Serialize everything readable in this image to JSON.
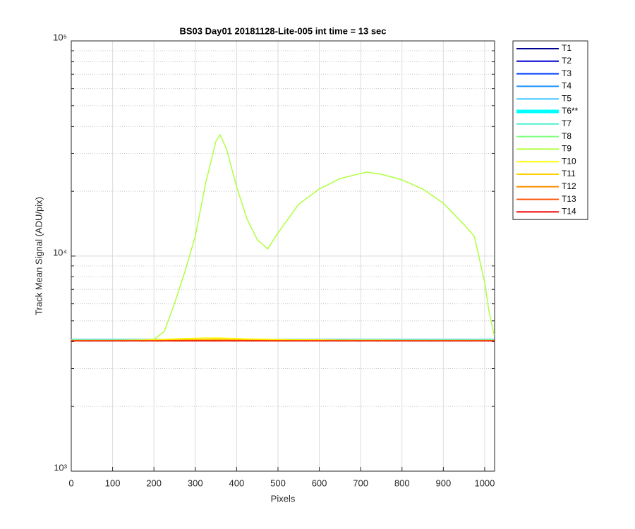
{
  "chart_data": {
    "type": "line",
    "title": "BS03 Day01 20181128-Lite-005 int time = 13 sec",
    "x_label": "Pixels",
    "y_label": "Track Mean Signal (ADU/pix)",
    "log_y": true,
    "grid": true,
    "minor_grid": true,
    "legend": "outside-right",
    "xlim": [
      0,
      1024
    ],
    "xticks": [
      0,
      100,
      200,
      300,
      400,
      500,
      600,
      700,
      800,
      900,
      1000
    ],
    "ylim": [
      1000,
      100000
    ],
    "yticks": [
      {
        "value": 1000,
        "label": "10³"
      },
      {
        "value": 10000,
        "label": "10⁴"
      },
      {
        "value": 100000,
        "label": "10⁵"
      }
    ],
    "x": [
      0,
      50,
      100,
      150,
      200,
      225,
      250,
      275,
      300,
      325,
      350,
      360,
      375,
      400,
      425,
      450,
      475,
      500,
      550,
      600,
      650,
      700,
      715,
      750,
      800,
      850,
      900,
      950,
      975,
      1000,
      1010,
      1023
    ],
    "series": [
      {
        "name": "T1",
        "color": "#00008f",
        "values": [
          4040,
          4040,
          4040,
          4040,
          4040,
          4040,
          4040,
          4040,
          4040,
          4040,
          4040,
          4040,
          4040,
          4040,
          4040,
          4040,
          4040,
          4040,
          4040,
          4040,
          4040,
          4040,
          4040,
          4040,
          4040,
          4040,
          4040,
          4040,
          4040,
          4040,
          4040,
          4040
        ]
      },
      {
        "name": "T2",
        "color": "#0000cf",
        "values": [
          4045,
          4045,
          4045,
          4045,
          4045,
          4045,
          4045,
          4045,
          4045,
          4045,
          4045,
          4045,
          4045,
          4045,
          4045,
          4045,
          4045,
          4045,
          4045,
          4045,
          4045,
          4045,
          4045,
          4045,
          4045,
          4045,
          4045,
          4045,
          4045,
          4045,
          4045,
          4045
        ]
      },
      {
        "name": "T3",
        "color": "#0040ff",
        "values": [
          4050,
          4050,
          4050,
          4050,
          4050,
          4050,
          4050,
          4050,
          4050,
          4050,
          4050,
          4050,
          4050,
          4050,
          4050,
          4050,
          4050,
          4050,
          4050,
          4050,
          4050,
          4050,
          4050,
          4050,
          4050,
          4050,
          4050,
          4050,
          4050,
          4050,
          4050,
          4050
        ]
      },
      {
        "name": "T4",
        "color": "#1e90ff",
        "values": [
          4060,
          4060,
          4060,
          4060,
          4060,
          4060,
          4060,
          4060,
          4060,
          4060,
          4060,
          4060,
          4060,
          4060,
          4060,
          4060,
          4060,
          4060,
          4060,
          4060,
          4060,
          4060,
          4060,
          4060,
          4060,
          4060,
          4060,
          4060,
          4060,
          4060,
          4060,
          4060
        ]
      },
      {
        "name": "T5",
        "color": "#40c8ff",
        "values": [
          4100,
          4100,
          4100,
          4100,
          4100,
          4100,
          4100,
          4100,
          4100,
          4100,
          4100,
          4100,
          4100,
          4100,
          4100,
          4100,
          4100,
          4100,
          4100,
          4100,
          4100,
          4100,
          4100,
          4100,
          4100,
          4100,
          4100,
          4100,
          4100,
          4100,
          4100,
          4100
        ]
      },
      {
        "name": "T6**",
        "color": "#00ffff",
        "highlight": true,
        "values": [
          4070,
          4070,
          4070,
          4070,
          4070,
          4070,
          4070,
          4070,
          4070,
          4070,
          4070,
          4070,
          4070,
          4070,
          4070,
          4070,
          4070,
          4070,
          4070,
          4070,
          4070,
          4070,
          4070,
          4070,
          4070,
          4070,
          4070,
          4070,
          4070,
          4070,
          4070,
          4070
        ]
      },
      {
        "name": "T7",
        "color": "#50efcf",
        "values": [
          4060,
          4060,
          4060,
          4060,
          4060,
          4060,
          4060,
          4060,
          4060,
          4060,
          4060,
          4060,
          4060,
          4060,
          4060,
          4060,
          4060,
          4060,
          4060,
          4060,
          4060,
          4060,
          4060,
          4060,
          4060,
          4060,
          4060,
          4060,
          4060,
          4060,
          4060,
          4060
        ]
      },
      {
        "name": "T8",
        "color": "#80ff80",
        "values": [
          4055,
          4055,
          4055,
          4055,
          4055,
          4055,
          4055,
          4055,
          4055,
          4055,
          4055,
          4055,
          4055,
          4055,
          4055,
          4055,
          4055,
          4055,
          4055,
          4055,
          4055,
          4055,
          4055,
          4055,
          4055,
          4055,
          4055,
          4055,
          4055,
          4055,
          4055,
          4055
        ]
      },
      {
        "name": "T9",
        "color": "#b0ff40",
        "values": [
          4050,
          4050,
          4050,
          4050,
          4100,
          4460,
          6030,
          8470,
          12350,
          21800,
          34200,
          36600,
          31700,
          21000,
          14900,
          11900,
          10800,
          12800,
          17400,
          20500,
          22900,
          24200,
          24550,
          24000,
          22600,
          20500,
          17600,
          14000,
          12350,
          7560,
          5590,
          4290
        ]
      },
      {
        "name": "T10",
        "color": "#ffff00",
        "values": [
          4060,
          4060,
          4060,
          4070,
          4080,
          4100,
          4120,
          4140,
          4150,
          4160,
          4160,
          4160,
          4150,
          4140,
          4120,
          4110,
          4100,
          4090,
          4080,
          4080,
          4070,
          4070,
          4070,
          4070,
          4060,
          4060,
          4060,
          4060,
          4060,
          4060,
          4060,
          4060
        ]
      },
      {
        "name": "T11",
        "color": "#ffcf00",
        "values": [
          4050,
          4050,
          4050,
          4050,
          4060,
          4070,
          4080,
          4090,
          4100,
          4100,
          4110,
          4110,
          4100,
          4090,
          4080,
          4070,
          4070,
          4060,
          4060,
          4060,
          4060,
          4050,
          4050,
          4050,
          4050,
          4050,
          4050,
          4050,
          4050,
          4050,
          4050,
          4050
        ]
      },
      {
        "name": "T12",
        "color": "#ff8f00",
        "values": [
          4040,
          4040,
          4040,
          4040,
          4040,
          4045,
          4050,
          4055,
          4060,
          4060,
          4060,
          4060,
          4060,
          4055,
          4050,
          4050,
          4045,
          4045,
          4040,
          4040,
          4040,
          4040,
          4040,
          4040,
          4040,
          4040,
          4040,
          4040,
          4040,
          4040,
          4040,
          4040
        ]
      },
      {
        "name": "T13",
        "color": "#ff5000",
        "values": [
          4035,
          4035,
          4035,
          4035,
          4035,
          4035,
          4040,
          4040,
          4040,
          4040,
          4040,
          4040,
          4040,
          4040,
          4040,
          4040,
          4035,
          4035,
          4035,
          4035,
          4035,
          4035,
          4035,
          4035,
          4035,
          4035,
          4035,
          4035,
          4035,
          4035,
          4035,
          4035
        ]
      },
      {
        "name": "T14",
        "color": "#ef0000",
        "values": [
          4030,
          4030,
          4030,
          4030,
          4030,
          4030,
          4030,
          4030,
          4030,
          4030,
          4030,
          4030,
          4030,
          4030,
          4030,
          4030,
          4030,
          4030,
          4030,
          4030,
          4030,
          4030,
          4030,
          4030,
          4030,
          4030,
          4030,
          4030,
          4030,
          4030,
          4030,
          4030
        ]
      }
    ]
  }
}
